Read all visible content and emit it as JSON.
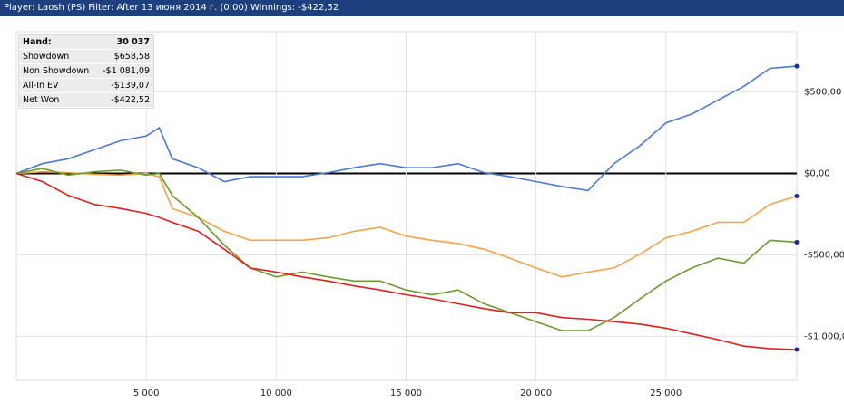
{
  "chart_data": {
    "type": "line",
    "title": "Player: Laosh (PS) Filter: After 13 июня 2014 г. (0:00) Winnings: -$422,52",
    "stats": [
      [
        "Hand:",
        "30 037"
      ],
      [
        "Showdown",
        "$658,58"
      ],
      [
        "Non Showdown",
        "-$1 081,09"
      ],
      [
        "All-In EV",
        "-$139,07"
      ],
      [
        "Net Won",
        "-$422,52"
      ]
    ],
    "x": [
      0,
      1000,
      2000,
      3000,
      4000,
      5000,
      5500,
      6000,
      7000,
      8000,
      9000,
      10000,
      11000,
      12000,
      13000,
      14000,
      15000,
      16000,
      17000,
      18000,
      19000,
      20000,
      21000,
      22000,
      23000,
      24000,
      25000,
      26000,
      27000,
      28000,
      29000,
      30037
    ],
    "series": [
      {
        "color": "#4a78dc",
        "values": [
          0,
          60,
          90,
          145,
          200,
          230,
          280,
          90,
          35,
          -50,
          -20,
          -20,
          -20,
          5,
          35,
          60,
          35,
          35,
          60,
          5,
          -20,
          -50,
          -80,
          -105,
          60,
          170,
          310,
          365,
          450,
          535,
          645,
          658
        ]
      },
      {
        "color": "#f5a346",
        "values": [
          0,
          10,
          5,
          -5,
          -10,
          0,
          -20,
          -215,
          -270,
          -355,
          -410,
          -410,
          -410,
          -395,
          -355,
          -330,
          -385,
          -410,
          -430,
          -465,
          -520,
          -580,
          -635,
          -605,
          -580,
          -495,
          -395,
          -355,
          -300,
          -300,
          -190,
          -139
        ]
      },
      {
        "color": "#6b9a2c",
        "values": [
          0,
          30,
          -10,
          10,
          20,
          -10,
          0,
          -135,
          -270,
          -440,
          -580,
          -635,
          -605,
          -635,
          -660,
          -660,
          -715,
          -745,
          -715,
          -800,
          -855,
          -910,
          -965,
          -965,
          -885,
          -770,
          -660,
          -580,
          -520,
          -550,
          -410,
          -422
        ]
      },
      {
        "color": "#e0201c",
        "values": [
          0,
          -50,
          -135,
          -190,
          -215,
          -245,
          -270,
          -300,
          -355,
          -465,
          -580,
          -605,
          -635,
          -660,
          -690,
          -715,
          -745,
          -770,
          -800,
          -830,
          -855,
          -855,
          -885,
          -895,
          -910,
          -925,
          -950,
          -985,
          -1020,
          -1060,
          -1075,
          -1081
        ]
      }
    ],
    "xlim": [
      0,
      30037
    ],
    "ylim": [
      -1270,
      870
    ],
    "xticks": [
      {
        "value": 5000,
        "label": "5 000"
      },
      {
        "value": 10000,
        "label": "10 000"
      },
      {
        "value": 15000,
        "label": "15 000"
      },
      {
        "value": 20000,
        "label": "20 000"
      },
      {
        "value": 25000,
        "label": "25 000"
      }
    ],
    "yticks": [
      {
        "value": 500,
        "label": "$500,00"
      },
      {
        "value": 0,
        "label": "$0,00"
      },
      {
        "value": -500,
        "label": "-$500,00"
      },
      {
        "value": -1000,
        "label": "-$1 000,00"
      }
    ],
    "grid": true
  }
}
